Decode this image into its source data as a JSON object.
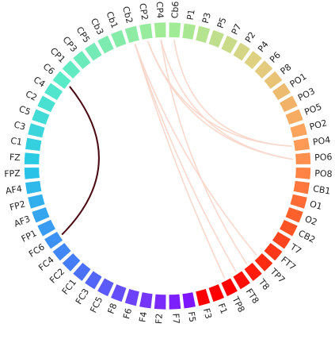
{
  "labels": [
    "Cb6",
    "P1",
    "P3",
    "P5",
    "P7",
    "P2",
    "P4",
    "P6",
    "P8",
    "PO1",
    "PO3",
    "PO5",
    "PO2",
    "PO4",
    "PO6",
    "PO8",
    "CB1",
    "O1",
    "O2",
    "CB2",
    "T7",
    "FT7",
    "TP7",
    "T8",
    "FT8",
    "TP8",
    "F1",
    "F3",
    "F5",
    "F7",
    "F2",
    "F4",
    "F6",
    "F8",
    "FC5",
    "FC3",
    "FC1",
    "FC2",
    "FC4",
    "FC6",
    "FP1",
    "AF3",
    "FP2",
    "AF4",
    "FPZ",
    "FZ",
    "C1",
    "C3",
    "C5",
    "C2",
    "C4",
    "C6",
    "CP1",
    "CP3",
    "CP5",
    "Cb3",
    "Cb1",
    "Cb2",
    "CP2",
    "CP4"
  ],
  "colors": {
    "connection_strong": "#4a0a12",
    "connection_faint": "#f9d8cc"
  },
  "connections": [
    {
      "from": "C6",
      "to": "FC6",
      "strength": "strong"
    },
    {
      "from": "Cb2",
      "to": "FT8",
      "strength": "faint"
    },
    {
      "from": "Cb2",
      "to": "TP7",
      "strength": "faint"
    },
    {
      "from": "Cb2",
      "to": "TP8",
      "strength": "faint"
    },
    {
      "from": "CP2",
      "to": "PO4",
      "strength": "faint"
    },
    {
      "from": "CP2",
      "to": "PO6",
      "strength": "faint"
    },
    {
      "from": "CP4",
      "to": "T8",
      "strength": "faint"
    },
    {
      "from": "CP4",
      "to": "PO6",
      "strength": "faint"
    },
    {
      "from": "Cb6",
      "to": "PO4",
      "strength": "faint"
    }
  ]
}
